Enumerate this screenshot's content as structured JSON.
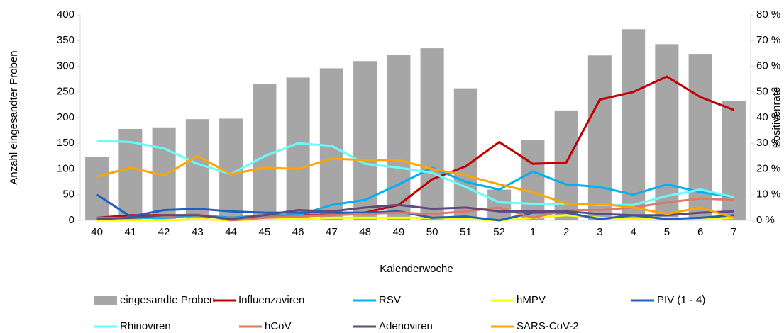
{
  "chart_data": {
    "type": "bar",
    "x_label": "Kalenderwoche",
    "y_label": "Anzahl eingesandter Proben",
    "y2_label": "Positivenrate",
    "categories": [
      "40",
      "41",
      "42",
      "43",
      "44",
      "45",
      "46",
      "47",
      "48",
      "49",
      "50",
      "51",
      "52",
      "1",
      "2",
      "3",
      "4",
      "5",
      "6",
      "7"
    ],
    "ylim": [
      0,
      400
    ],
    "yticks": [
      0,
      50,
      100,
      150,
      200,
      250,
      300,
      350,
      400
    ],
    "y2lim": [
      0,
      80
    ],
    "y2ticks": [
      {
        "value": 0,
        "label": "0 %"
      },
      {
        "value": 10,
        "label": "10 %"
      },
      {
        "value": 20,
        "label": "20 %"
      },
      {
        "value": 30,
        "label": "30 %"
      },
      {
        "value": 40,
        "label": "40 %"
      },
      {
        "value": 50,
        "label": "50 %"
      },
      {
        "value": 60,
        "label": "60 %"
      },
      {
        "value": 70,
        "label": "70 %"
      },
      {
        "value": 80,
        "label": "80 %"
      }
    ],
    "series": [
      {
        "name": "eingesandte Proben",
        "type": "bar",
        "color": "#a6a6a6",
        "values": [
          123,
          178,
          181,
          197,
          198,
          265,
          278,
          296,
          310,
          322,
          335,
          257,
          60,
          157,
          214,
          321,
          372,
          343,
          324,
          233
        ]
      },
      {
        "name": "Influenzaviren",
        "type": "line",
        "axis": "y2",
        "color": "#c00000",
        "values": [
          1,
          2,
          2,
          2,
          1,
          2,
          2,
          2,
          3,
          6,
          16,
          21,
          30.5,
          22,
          22.5,
          47,
          50,
          56,
          48,
          43
        ]
      },
      {
        "name": "RSV",
        "type": "line",
        "axis": "y2",
        "color": "#00b0f0",
        "values": [
          1,
          1,
          1,
          2,
          1,
          2,
          2,
          6,
          8,
          14,
          20.5,
          15,
          12,
          19,
          14,
          13,
          10,
          14,
          11,
          9
        ]
      },
      {
        "name": "hMPV",
        "type": "line",
        "axis": "y2",
        "color": "#ffff00",
        "values": [
          0,
          0,
          0,
          0.5,
          0,
          0.5,
          0.5,
          1,
          1,
          1,
          1,
          0.5,
          0,
          1,
          2,
          1,
          0.5,
          1,
          0.5,
          1
        ]
      },
      {
        "name": "PIV (1 - 4)",
        "type": "line",
        "axis": "y2",
        "color": "#1f5fbf",
        "values": [
          10,
          1.5,
          4,
          4.5,
          3.5,
          3,
          3,
          3,
          3,
          3.5,
          1,
          1.5,
          0,
          3,
          3,
          0.5,
          2,
          0.5,
          1,
          2
        ]
      },
      {
        "name": "Rhinoviren",
        "type": "line",
        "axis": "y2",
        "color": "#66ffff",
        "values": [
          31,
          30.5,
          28,
          22,
          18,
          25,
          30,
          29,
          22,
          20.5,
          18.5,
          13,
          7,
          6.5,
          6.5,
          6,
          6,
          9.5,
          12,
          9
        ]
      },
      {
        "name": "hCoV",
        "type": "line",
        "axis": "y2",
        "color": "#da7a68",
        "values": [
          0.5,
          1,
          1.5,
          2.5,
          0,
          1,
          1.5,
          2,
          2.5,
          3,
          2.5,
          3.5,
          5,
          1,
          4,
          4,
          5,
          7,
          8.5,
          8
        ]
      },
      {
        "name": "Adenoviren",
        "type": "line",
        "axis": "y2",
        "color": "#604a7b",
        "values": [
          0.5,
          1,
          2,
          2,
          0.5,
          2,
          4,
          3.5,
          5,
          6,
          4.5,
          5,
          3.5,
          3.5,
          3.5,
          2.5,
          2,
          2,
          3,
          3.5
        ]
      },
      {
        "name": "SARS-CoV-2",
        "type": "line",
        "axis": "y2",
        "color": "#ffa500",
        "values": [
          17,
          20.5,
          17.5,
          25,
          18,
          20.5,
          20,
          24,
          23.5,
          23.5,
          20,
          17.5,
          14,
          11,
          6.5,
          6.5,
          5,
          2.5,
          5,
          1
        ]
      }
    ]
  }
}
